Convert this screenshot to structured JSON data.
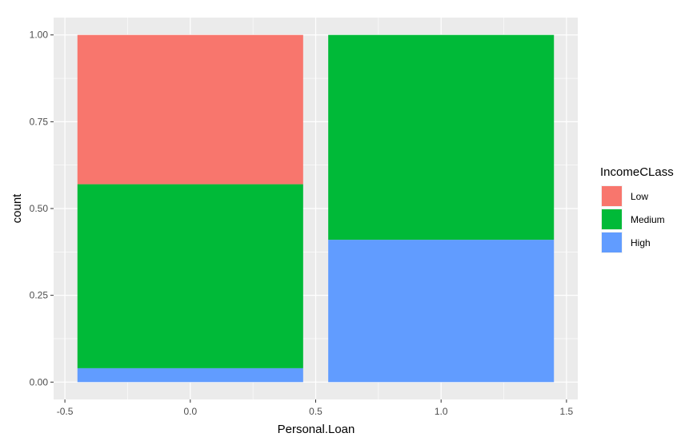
{
  "chart_data": {
    "type": "bar",
    "stacked": true,
    "xlabel": "Personal.Loan",
    "ylabel": "count",
    "x_ticks": [
      "-0.5",
      "0.0",
      "0.5",
      "1.0",
      "1.5"
    ],
    "x_tick_values": [
      -0.5,
      0.0,
      0.5,
      1.0,
      1.5
    ],
    "y_ticks": [
      "0.00",
      "0.25",
      "0.50",
      "0.75",
      "1.00"
    ],
    "y_tick_values": [
      0,
      0.25,
      0.5,
      0.75,
      1.0
    ],
    "xlim": [
      -0.545,
      1.545
    ],
    "ylim": [
      -0.05,
      1.05
    ],
    "grid": true,
    "legend_position": "right",
    "legend_title": "IncomeCLass",
    "categories": [
      0,
      1
    ],
    "bar_width": 0.9,
    "series": [
      {
        "name": "High",
        "color": "#619CFF",
        "values": [
          0.04,
          0.41
        ]
      },
      {
        "name": "Medium",
        "color": "#00BA38",
        "values": [
          0.53,
          0.59
        ]
      },
      {
        "name": "Low",
        "color": "#F8766D",
        "values": [
          0.43,
          0.0
        ]
      }
    ],
    "legend_order": [
      "Low",
      "Medium",
      "High"
    ]
  }
}
